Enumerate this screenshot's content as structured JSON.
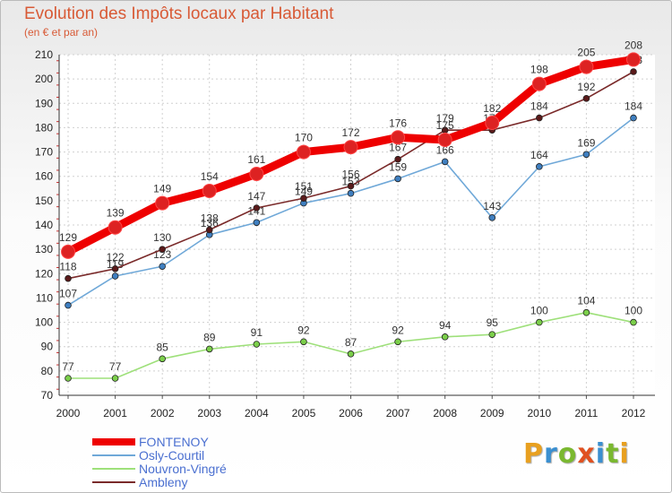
{
  "title": "Evolution des Impôts locaux par Habitant",
  "subtitle": "(en € et par an)",
  "logo": {
    "text": "Proxiti",
    "letter_colors": [
      "#e8a020",
      "#3a8fd0",
      "#7ab830",
      "#e05020",
      "#3a8fd0",
      "#7ab830",
      "#e8a020"
    ]
  },
  "chart_data": {
    "type": "line",
    "title": "Evolution des Impôts locaux par Habitant",
    "ylabel": "(en € et par an)",
    "xlabel": "",
    "x": [
      "2000",
      "2001",
      "2002",
      "2003",
      "2004",
      "2005",
      "2006",
      "2007",
      "2008",
      "2009",
      "2010",
      "2011",
      "2012"
    ],
    "ylim": [
      70,
      210
    ],
    "yticks": [
      70,
      80,
      90,
      100,
      110,
      120,
      130,
      140,
      150,
      160,
      170,
      180,
      190,
      200,
      210
    ],
    "grid": true,
    "legend_position": "bottom-left",
    "series": [
      {
        "name": "FONTENOY",
        "color": "#ee0000",
        "marker_color": "#dd2222",
        "emphasis": true,
        "values": [
          129,
          139,
          149,
          154,
          161,
          170,
          172,
          176,
          175,
          182,
          198,
          205,
          208
        ]
      },
      {
        "name": "Osly-Courtil",
        "color": "#6fa8d8",
        "marker_color": "#3f7fc0",
        "emphasis": false,
        "values": [
          107,
          119,
          123,
          136,
          141,
          149,
          153,
          159,
          166,
          143,
          164,
          169,
          184
        ]
      },
      {
        "name": "Nouvron-Vingré",
        "color": "#9ee07a",
        "marker_color": "#7bcf4a",
        "emphasis": false,
        "values": [
          77,
          77,
          85,
          89,
          91,
          92,
          87,
          92,
          94,
          95,
          100,
          104,
          100
        ]
      },
      {
        "name": "Ambleny",
        "color": "#7a2a2a",
        "marker_color": "#5a1a1a",
        "emphasis": false,
        "values": [
          118,
          122,
          130,
          138,
          147,
          151,
          156,
          167,
          179,
          179,
          184,
          192,
          203
        ]
      }
    ]
  }
}
